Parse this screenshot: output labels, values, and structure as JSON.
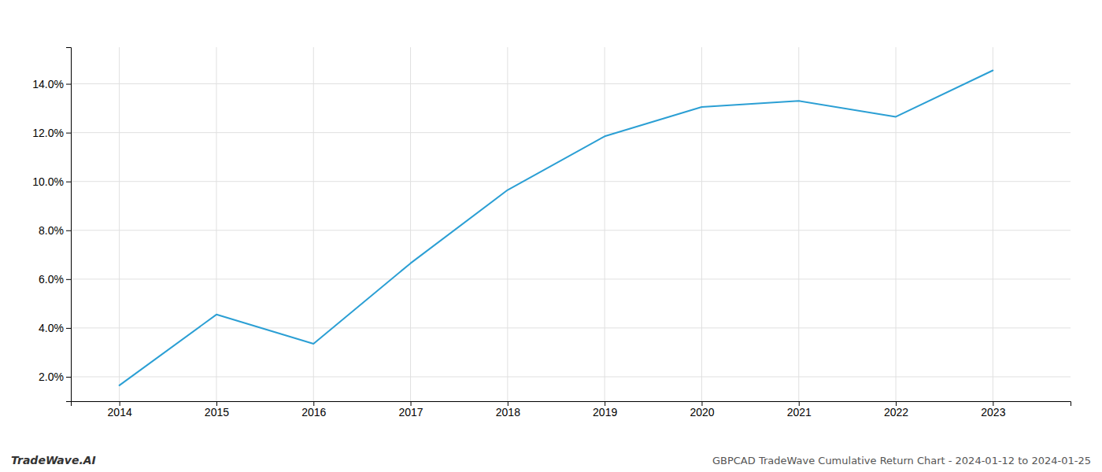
{
  "chart_data": {
    "type": "line",
    "title": "GBPCAD TradeWave Cumulative Return Chart - 2024-01-12 to 2024-01-25",
    "annotations": [
      "TradeWave.AI"
    ],
    "x": [
      2014,
      2015,
      2016,
      2017,
      2018,
      2019,
      2020,
      2021,
      2022,
      2023
    ],
    "values": [
      1.65,
      4.55,
      3.35,
      6.65,
      9.65,
      11.85,
      13.05,
      13.3,
      12.65,
      14.55
    ],
    "color": "#2b9fd4",
    "xlim": [
      2013.5,
      2023.8
    ],
    "xticks": [
      2014,
      2015,
      2016,
      2017,
      2018,
      2019,
      2020,
      2021,
      2022,
      2023
    ],
    "ylim": [
      1.0,
      15.5
    ],
    "yticks": [
      {
        "value": 2.0,
        "label": "2.0%"
      },
      {
        "value": 4.0,
        "label": "4.0%"
      },
      {
        "value": 6.0,
        "label": "6.0%"
      },
      {
        "value": 8.0,
        "label": "8.0%"
      },
      {
        "value": 10.0,
        "label": "10.0%"
      },
      {
        "value": 12.0,
        "label": "12.0%"
      },
      {
        "value": 14.0,
        "label": "14.0%"
      }
    ],
    "grid": true
  }
}
